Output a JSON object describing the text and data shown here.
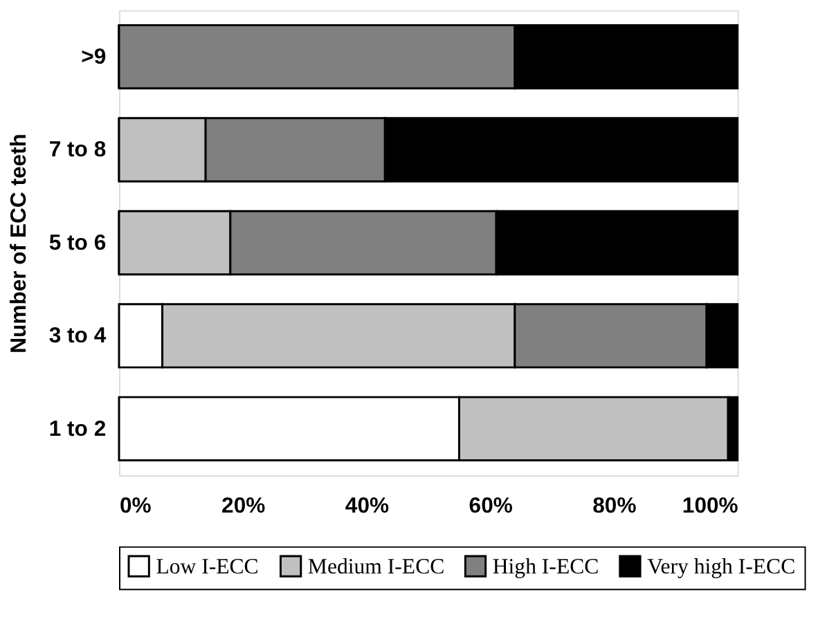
{
  "chart_data": {
    "type": "bar",
    "orientation": "horizontal",
    "stacked": true,
    "ylabel": "Number of ECC teeth",
    "categories": [
      ">9",
      "7 to 8",
      "5 to 6",
      "3 to 4",
      "1 to 2"
    ],
    "series": [
      {
        "name": "Low I-ECC",
        "color": "#ffffff",
        "values": [
          0,
          0,
          0,
          7,
          55
        ]
      },
      {
        "name": "Medium I-ECC",
        "color": "#c0c0c0",
        "values": [
          0,
          14,
          18,
          57,
          43.5
        ]
      },
      {
        "name": "High I-ECC",
        "color": "#808080",
        "values": [
          64,
          29,
          43,
          31,
          0
        ]
      },
      {
        "name": "Very high I-ECC",
        "color": "#000000",
        "values": [
          36,
          57,
          39,
          5,
          1.5
        ]
      }
    ],
    "xlim": [
      0,
      100
    ],
    "xticks": [
      {
        "value": 0,
        "label": "0%"
      },
      {
        "value": 20,
        "label": "20%"
      },
      {
        "value": 40,
        "label": "40%"
      },
      {
        "value": 60,
        "label": "60%"
      },
      {
        "value": 80,
        "label": "80%"
      },
      {
        "value": 100,
        "label": "100%"
      }
    ],
    "grid": false,
    "legend": "bottom"
  }
}
